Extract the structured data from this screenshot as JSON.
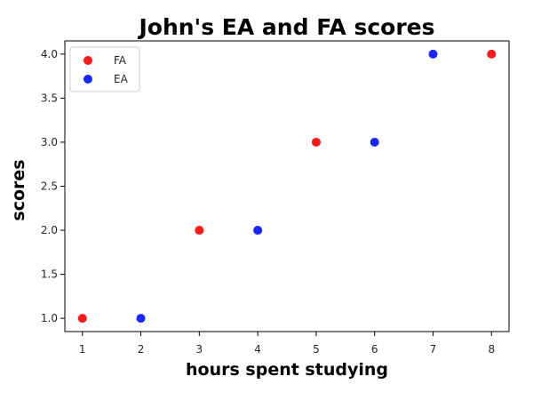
{
  "chart_data": {
    "type": "scatter",
    "title": "John's EA and FA scores",
    "xlabel": "hours spent studying",
    "ylabel": "scores",
    "xlim": [
      0.7,
      8.3
    ],
    "ylim": [
      0.85,
      4.15
    ],
    "xticks": [
      1,
      2,
      3,
      4,
      5,
      6,
      7,
      8
    ],
    "yticks": [
      1.0,
      1.5,
      2.0,
      2.5,
      3.0,
      3.5,
      4.0
    ],
    "xtick_labels": [
      "1",
      "2",
      "3",
      "4",
      "5",
      "6",
      "7",
      "8"
    ],
    "ytick_labels": [
      "1.0",
      "1.5",
      "2.0",
      "2.5",
      "3.0",
      "3.5",
      "4.0"
    ],
    "grid": false,
    "legend_position": "top-left",
    "series": [
      {
        "name": "FA",
        "color": "#ff1a1a",
        "x": [
          1,
          3,
          5,
          8
        ],
        "y": [
          1,
          2,
          3,
          4
        ]
      },
      {
        "name": "EA",
        "color": "#1a26ff",
        "x": [
          2,
          4,
          6,
          7
        ],
        "y": [
          1,
          2,
          3,
          4
        ]
      }
    ]
  }
}
